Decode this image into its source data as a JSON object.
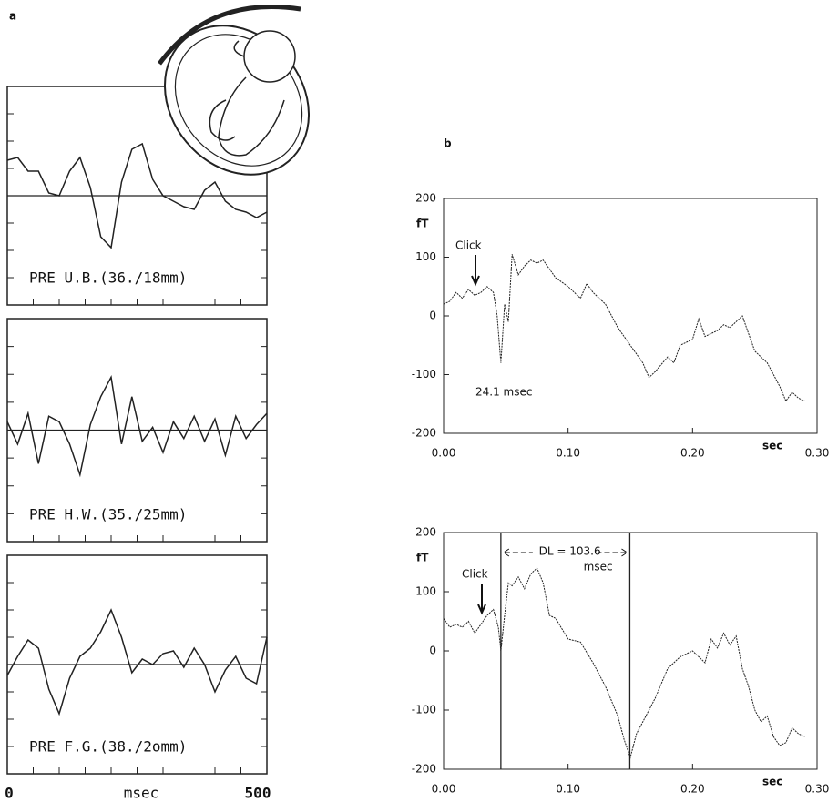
{
  "chart_data": [
    {
      "type": "line",
      "panel_label": "a",
      "annotation": "PRE U.B.(36./18mm)",
      "xlim": [
        0,
        500
      ],
      "ylim": [
        -4,
        4
      ],
      "x": [
        0,
        20,
        40,
        60,
        80,
        100,
        120,
        140,
        160,
        180,
        200,
        220,
        240,
        260,
        280,
        300,
        320,
        340,
        360,
        380,
        400,
        420,
        440,
        460,
        480,
        500
      ],
      "values": [
        1.3,
        1.4,
        0.9,
        0.9,
        0.1,
        0.0,
        0.9,
        1.4,
        0.3,
        -1.5,
        -1.9,
        0.5,
        1.7,
        1.9,
        0.6,
        0.0,
        -0.2,
        -0.4,
        -0.5,
        0.2,
        0.5,
        -0.2,
        -0.5,
        -0.6,
        -0.8,
        -0.6
      ]
    },
    {
      "type": "line",
      "annotation": "PRE H.W.(35./25mm)",
      "xlim": [
        0,
        500
      ],
      "ylim": [
        -4,
        4
      ],
      "x": [
        0,
        20,
        40,
        60,
        80,
        100,
        120,
        140,
        160,
        180,
        200,
        220,
        240,
        260,
        280,
        300,
        320,
        340,
        360,
        380,
        400,
        420,
        440,
        460,
        480,
        500
      ],
      "values": [
        0.3,
        -0.5,
        0.6,
        -1.2,
        0.5,
        0.3,
        -0.5,
        -1.6,
        0.2,
        1.2,
        1.9,
        -0.5,
        1.2,
        -0.4,
        0.1,
        -0.8,
        0.3,
        -0.3,
        0.5,
        -0.4,
        0.4,
        -0.9,
        0.5,
        -0.3,
        0.2,
        0.6
      ]
    },
    {
      "type": "line",
      "annotation": "PRE F.G.(38./2omm)",
      "xlim": [
        0,
        500
      ],
      "ylim": [
        -4,
        4
      ],
      "xticks": [
        0,
        500
      ],
      "xlabel": "msec",
      "x": [
        0,
        20,
        40,
        60,
        80,
        100,
        120,
        140,
        160,
        180,
        200,
        220,
        240,
        260,
        280,
        300,
        320,
        340,
        360,
        380,
        400,
        420,
        440,
        460,
        480,
        500
      ],
      "values": [
        -0.4,
        0.3,
        0.9,
        0.6,
        -0.9,
        -1.8,
        -0.5,
        0.3,
        0.6,
        1.2,
        2.0,
        1.0,
        -0.3,
        0.2,
        0.0,
        0.4,
        0.5,
        -0.1,
        0.6,
        0.0,
        -1.0,
        -0.2,
        0.3,
        -0.5,
        -0.7,
        1.0
      ]
    },
    {
      "type": "line",
      "panel_label": "b",
      "ylabel": "fT",
      "xlabel": "sec",
      "click_label": "Click",
      "latency_label": "24.1 msec",
      "xlim": [
        0,
        0.3
      ],
      "ylim": [
        -200,
        200
      ],
      "yticks": [
        -200,
        -100,
        0,
        100,
        200
      ],
      "xticks": [
        {
          "value": 0,
          "label": "0.00"
        },
        {
          "value": 0.1,
          "label": "0.10"
        },
        {
          "value": 0.2,
          "label": "0.20"
        },
        {
          "value": 0.3,
          "label": "0.30"
        }
      ],
      "x": [
        0,
        0.005,
        0.01,
        0.015,
        0.02,
        0.025,
        0.03,
        0.035,
        0.04,
        0.043,
        0.046,
        0.049,
        0.052,
        0.055,
        0.06,
        0.065,
        0.07,
        0.075,
        0.08,
        0.09,
        0.1,
        0.11,
        0.115,
        0.12,
        0.13,
        0.14,
        0.15,
        0.16,
        0.165,
        0.17,
        0.18,
        0.185,
        0.19,
        0.2,
        0.205,
        0.21,
        0.22,
        0.225,
        0.23,
        0.235,
        0.24,
        0.245,
        0.25,
        0.26,
        0.265,
        0.27,
        0.275,
        0.28,
        0.285,
        0.29
      ],
      "values": [
        20,
        25,
        40,
        30,
        45,
        35,
        40,
        50,
        40,
        0,
        -80,
        20,
        -10,
        105,
        70,
        85,
        95,
        90,
        95,
        65,
        50,
        30,
        55,
        40,
        20,
        -20,
        -50,
        -80,
        -105,
        -95,
        -70,
        -80,
        -50,
        -40,
        -5,
        -35,
        -25,
        -15,
        -20,
        -10,
        0,
        -30,
        -60,
        -80,
        -100,
        -120,
        -145,
        -130,
        -140,
        -145
      ]
    },
    {
      "type": "line",
      "ylabel": "fT",
      "xlabel": "sec",
      "click_label": "Click",
      "dl_label": "DL = 103.6",
      "dl_unit": "msec",
      "vlines": [
        0.046,
        0.1496
      ],
      "xlim": [
        0,
        0.3
      ],
      "ylim": [
        -200,
        200
      ],
      "yticks": [
        -200,
        -100,
        0,
        100,
        200
      ],
      "xticks": [
        {
          "value": 0,
          "label": "0.00"
        },
        {
          "value": 0.1,
          "label": "0.10"
        },
        {
          "value": 0.2,
          "label": "0.20"
        },
        {
          "value": 0.3,
          "label": "0.30"
        }
      ],
      "x": [
        0,
        0.005,
        0.01,
        0.015,
        0.02,
        0.025,
        0.03,
        0.035,
        0.04,
        0.044,
        0.046,
        0.049,
        0.052,
        0.055,
        0.06,
        0.065,
        0.07,
        0.075,
        0.08,
        0.085,
        0.09,
        0.1,
        0.11,
        0.12,
        0.13,
        0.14,
        0.145,
        0.15,
        0.155,
        0.16,
        0.17,
        0.18,
        0.19,
        0.2,
        0.21,
        0.215,
        0.22,
        0.225,
        0.23,
        0.235,
        0.24,
        0.245,
        0.25,
        0.255,
        0.26,
        0.265,
        0.27,
        0.275,
        0.28,
        0.285,
        0.29
      ],
      "values": [
        55,
        40,
        45,
        40,
        50,
        30,
        45,
        60,
        70,
        40,
        0,
        60,
        115,
        110,
        125,
        105,
        130,
        140,
        115,
        60,
        55,
        20,
        15,
        -20,
        -60,
        -110,
        -150,
        -180,
        -140,
        -120,
        -80,
        -30,
        -10,
        0,
        -20,
        20,
        5,
        30,
        10,
        25,
        -30,
        -60,
        -100,
        -120,
        -110,
        -145,
        -160,
        -155,
        -130,
        -140,
        -145
      ]
    }
  ]
}
